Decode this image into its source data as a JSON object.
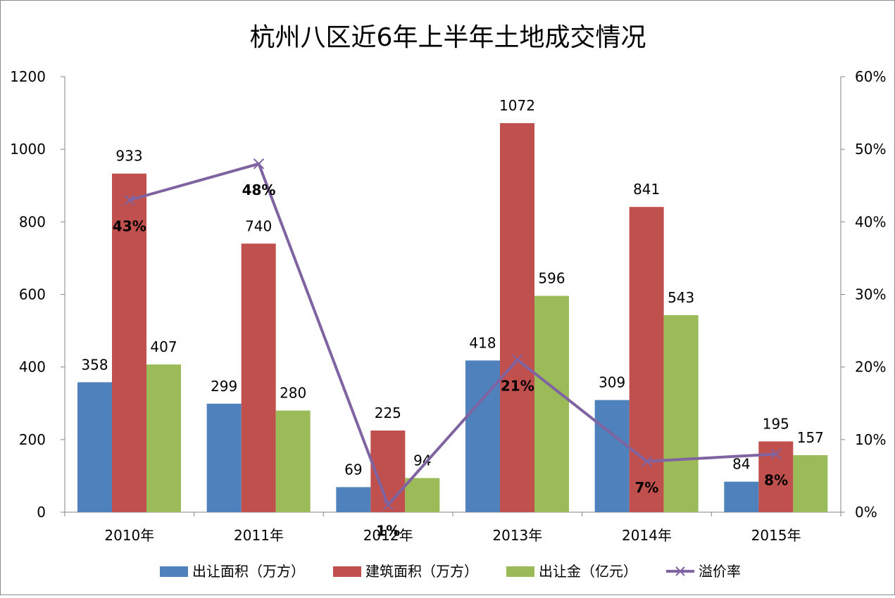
{
  "chart_data": {
    "type": "bar",
    "title": "杭州八区近6年上半年土地成交情况",
    "categories": [
      "2010年",
      "2011年",
      "2012年",
      "2013年",
      "2014年",
      "2015年"
    ],
    "series": [
      {
        "name": "出让面积（万方）",
        "type": "bar",
        "axis": "left",
        "color": "#4F81BD",
        "values": [
          358,
          299,
          69,
          418,
          309,
          84
        ]
      },
      {
        "name": "建筑面积（万方）",
        "type": "bar",
        "axis": "left",
        "color": "#C0504D",
        "values": [
          933,
          740,
          225,
          1072,
          841,
          195
        ]
      },
      {
        "name": "出让金（亿元）",
        "type": "bar",
        "axis": "left",
        "color": "#9BBB59",
        "values": [
          407,
          280,
          94,
          596,
          543,
          157
        ]
      },
      {
        "name": "溢价率",
        "type": "line",
        "axis": "right",
        "color": "#8064A2",
        "values": [
          43,
          48,
          1,
          21,
          7,
          8
        ]
      }
    ],
    "y_left": {
      "min": 0,
      "max": 1200,
      "step": 200,
      "ticks": [
        "0",
        "200",
        "400",
        "600",
        "800",
        "1000",
        "1200"
      ]
    },
    "y_right": {
      "min": 0,
      "max": 60,
      "step": 10,
      "ticks": [
        "0%",
        "10%",
        "20%",
        "30%",
        "40%",
        "50%",
        "60%"
      ]
    },
    "line_labels": [
      "43%",
      "48%",
      "1%",
      "21%",
      "7%",
      "8%"
    ],
    "legend_position": "bottom",
    "grid": false
  }
}
